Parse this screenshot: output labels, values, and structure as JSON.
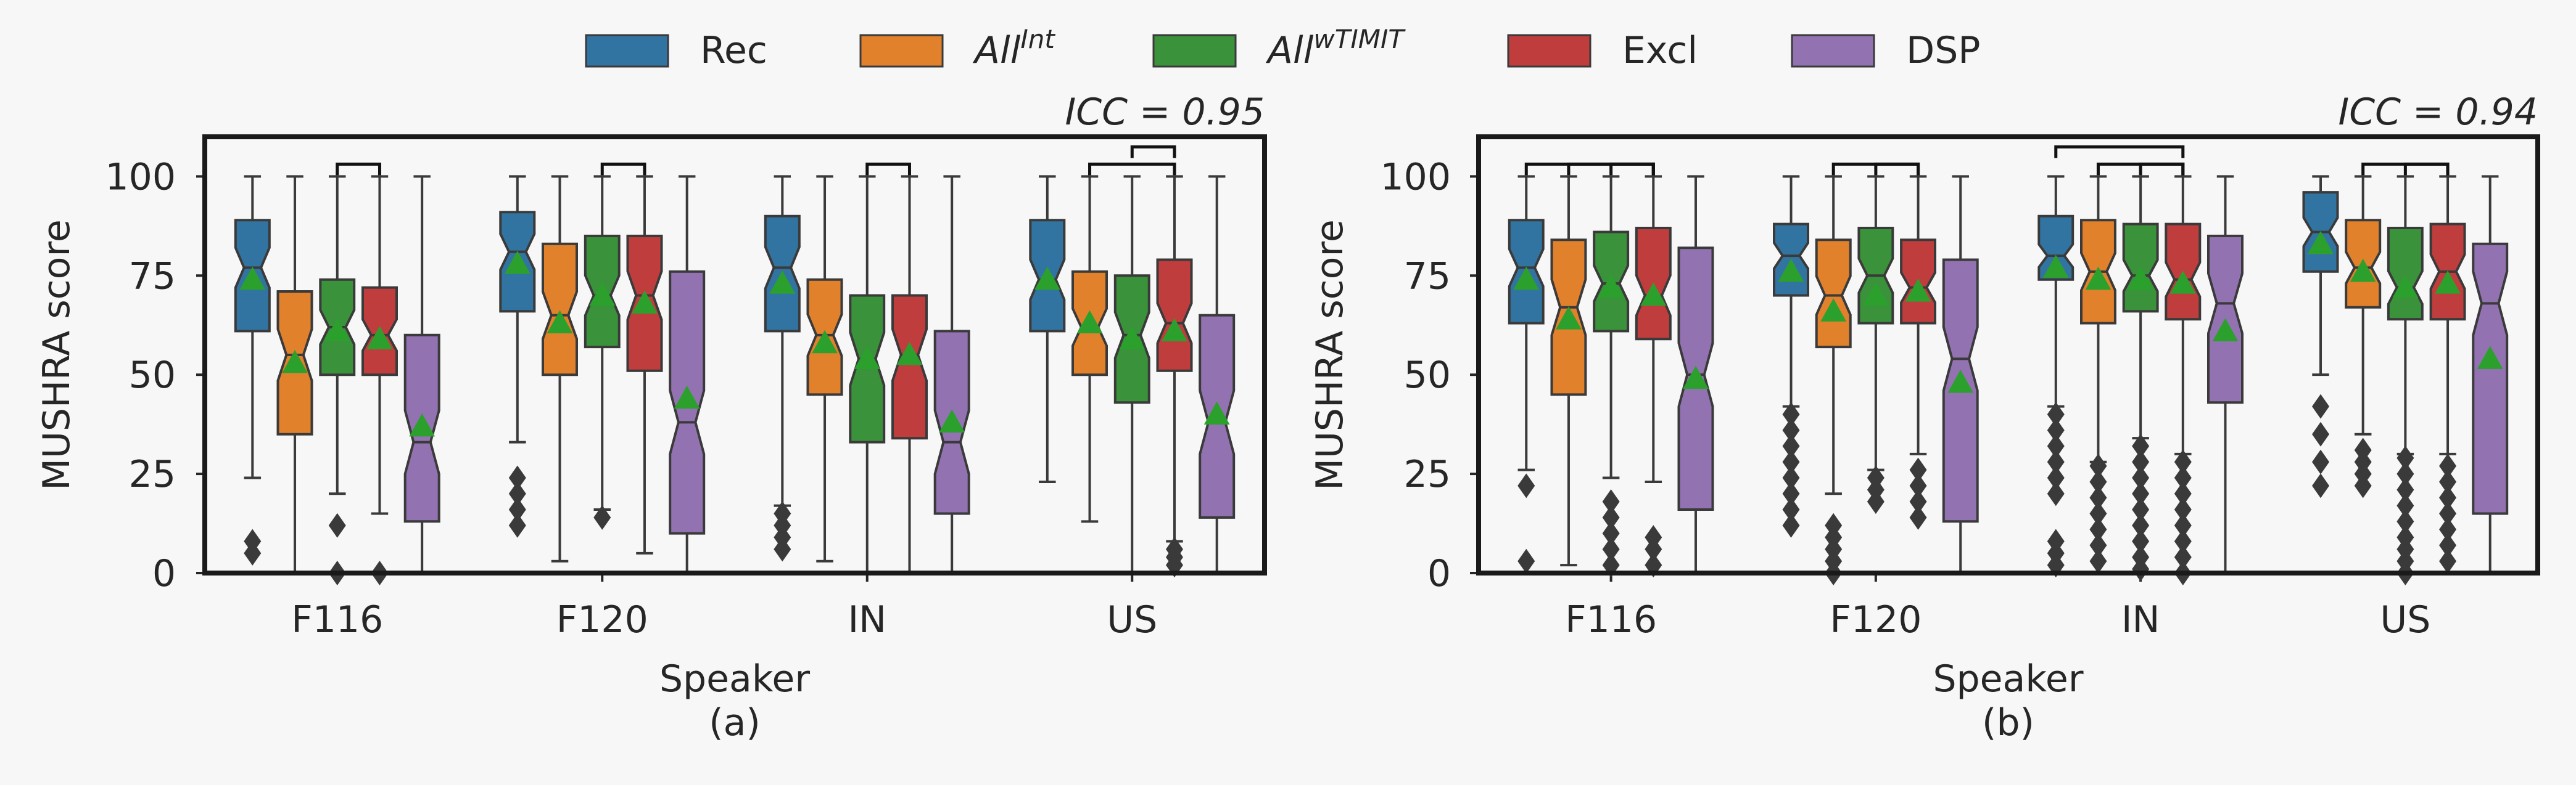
{
  "legend": [
    {
      "label": "Rec",
      "italic": false,
      "color": "#3274a1"
    },
    {
      "label": "All",
      "sup": "Int",
      "italic": true,
      "color": "#e1812c"
    },
    {
      "label": "All",
      "sup": "wTIMIT",
      "italic": true,
      "color": "#3a923a"
    },
    {
      "label": "Excl",
      "italic": false,
      "color": "#c03d3e"
    },
    {
      "label": "DSP",
      "italic": false,
      "color": "#9372b2"
    }
  ],
  "chart_data": [
    {
      "type": "boxplot",
      "caption": "(a)",
      "icc_label": "ICC = 0.95",
      "xlabel": "Speaker",
      "ylabel": "MUSHRA score",
      "ylim": [
        0,
        110
      ],
      "yticks": [
        0,
        25,
        50,
        75,
        100
      ],
      "categories": [
        "F116",
        "F120",
        "IN",
        "US"
      ],
      "series": [
        {
          "name": "Rec",
          "boxes": [
            {
              "q1": 61,
              "median": 77,
              "q3": 89,
              "whislo": 24,
              "whishi": 100,
              "mean": 74,
              "fliers": [
                5,
                8
              ]
            },
            {
              "q1": 66,
              "median": 81,
              "q3": 91,
              "whislo": 33,
              "whishi": 100,
              "mean": 78,
              "fliers": [
                12,
                16,
                20,
                24
              ]
            },
            {
              "q1": 61,
              "median": 77,
              "q3": 90,
              "whislo": 17,
              "whishi": 100,
              "mean": 73,
              "fliers": [
                6,
                9,
                12,
                15
              ]
            },
            {
              "q1": 61,
              "median": 74,
              "q3": 89,
              "whislo": 23,
              "whishi": 100,
              "mean": 74,
              "fliers": []
            }
          ]
        },
        {
          "name": "All^Int",
          "boxes": [
            {
              "q1": 35,
              "median": 55,
              "q3": 71,
              "whislo": 0,
              "whishi": 100,
              "mean": 53,
              "fliers": []
            },
            {
              "q1": 50,
              "median": 65,
              "q3": 83,
              "whislo": 3,
              "whishi": 100,
              "mean": 63,
              "fliers": []
            },
            {
              "q1": 45,
              "median": 60,
              "q3": 74,
              "whislo": 3,
              "whishi": 100,
              "mean": 58,
              "fliers": []
            },
            {
              "q1": 50,
              "median": 62,
              "q3": 76,
              "whislo": 13,
              "whishi": 100,
              "mean": 63,
              "fliers": []
            }
          ]
        },
        {
          "name": "All^wTIMIT",
          "boxes": [
            {
              "q1": 50,
              "median": 62,
              "q3": 74,
              "whislo": 20,
              "whishi": 100,
              "mean": 61,
              "fliers": [
                0,
                12
              ]
            },
            {
              "q1": 57,
              "median": 70,
              "q3": 85,
              "whislo": 16,
              "whishi": 100,
              "mean": 70,
              "fliers": [
                14
              ]
            },
            {
              "q1": 33,
              "median": 54,
              "q3": 70,
              "whislo": 0,
              "whishi": 100,
              "mean": 54,
              "fliers": []
            },
            {
              "q1": 43,
              "median": 60,
              "q3": 75,
              "whislo": 0,
              "whishi": 100,
              "mean": 59,
              "fliers": []
            }
          ]
        },
        {
          "name": "Excl",
          "boxes": [
            {
              "q1": 50,
              "median": 60,
              "q3": 72,
              "whislo": 15,
              "whishi": 100,
              "mean": 59,
              "fliers": [
                0
              ]
            },
            {
              "q1": 51,
              "median": 70,
              "q3": 85,
              "whislo": 5,
              "whishi": 100,
              "mean": 68,
              "fliers": []
            },
            {
              "q1": 34,
              "median": 55,
              "q3": 70,
              "whislo": 0,
              "whishi": 100,
              "mean": 55,
              "fliers": []
            },
            {
              "q1": 51,
              "median": 63,
              "q3": 79,
              "whislo": 8,
              "whishi": 100,
              "mean": 61,
              "fliers": [
                2,
                4,
                6
              ]
            }
          ]
        },
        {
          "name": "DSP",
          "boxes": [
            {
              "q1": 13,
              "median": 33,
              "q3": 60,
              "whislo": 0,
              "whishi": 100,
              "mean": 37,
              "fliers": []
            },
            {
              "q1": 10,
              "median": 38,
              "q3": 76,
              "whislo": 0,
              "whishi": 100,
              "mean": 44,
              "fliers": []
            },
            {
              "q1": 15,
              "median": 33,
              "q3": 61,
              "whislo": 0,
              "whishi": 100,
              "mean": 38,
              "fliers": []
            },
            {
              "q1": 14,
              "median": 38,
              "q3": 65,
              "whislo": 0,
              "whishi": 100,
              "mean": 40,
              "fliers": []
            }
          ]
        }
      ],
      "brackets": [
        {
          "cat": 0,
          "from": 2,
          "to": 3,
          "level": 0
        },
        {
          "cat": 1,
          "from": 2,
          "to": 3,
          "level": 0
        },
        {
          "cat": 2,
          "from": 2,
          "to": 3,
          "level": 0
        },
        {
          "cat": 3,
          "from": 1,
          "to": 3,
          "level": 0
        },
        {
          "cat": 3,
          "from": 2,
          "to": 3,
          "level": 1
        }
      ]
    },
    {
      "type": "boxplot",
      "caption": "(b)",
      "icc_label": "ICC = 0.94",
      "xlabel": "Speaker",
      "ylabel": "MUSHRA score",
      "ylim": [
        0,
        110
      ],
      "yticks": [
        0,
        25,
        50,
        75,
        100
      ],
      "categories": [
        "F116",
        "F120",
        "IN",
        "US"
      ],
      "series": [
        {
          "name": "Rec",
          "boxes": [
            {
              "q1": 63,
              "median": 77,
              "q3": 89,
              "whislo": 26,
              "whishi": 100,
              "mean": 74,
              "fliers": [
                3,
                22
              ]
            },
            {
              "q1": 70,
              "median": 80,
              "q3": 88,
              "whislo": 42,
              "whishi": 100,
              "mean": 76,
              "fliers": [
                12,
                16,
                20,
                24,
                28,
                32,
                36,
                40
              ]
            },
            {
              "q1": 74,
              "median": 80,
              "q3": 90,
              "whislo": 42,
              "whishi": 100,
              "mean": 77,
              "fliers": [
                2,
                5,
                8,
                20,
                24,
                28,
                32,
                36,
                40
              ]
            },
            {
              "q1": 76,
              "median": 86,
              "q3": 96,
              "whislo": 50,
              "whishi": 100,
              "mean": 83,
              "fliers": [
                22,
                28,
                35,
                42
              ]
            }
          ]
        },
        {
          "name": "All^Int",
          "boxes": [
            {
              "q1": 45,
              "median": 67,
              "q3": 84,
              "whislo": 2,
              "whishi": 100,
              "mean": 64,
              "fliers": []
            },
            {
              "q1": 57,
              "median": 70,
              "q3": 84,
              "whislo": 20,
              "whishi": 100,
              "mean": 66,
              "fliers": [
                0,
                3,
                6,
                9,
                12
              ]
            },
            {
              "q1": 63,
              "median": 76,
              "q3": 89,
              "whislo": 28,
              "whishi": 100,
              "mean": 74,
              "fliers": [
                3,
                7,
                11,
                15,
                19,
                23,
                27
              ]
            },
            {
              "q1": 67,
              "median": 77,
              "q3": 89,
              "whislo": 35,
              "whishi": 100,
              "mean": 76,
              "fliers": [
                22,
                25,
                28,
                31
              ]
            }
          ]
        },
        {
          "name": "All^wTIMIT",
          "boxes": [
            {
              "q1": 61,
              "median": 73,
              "q3": 86,
              "whislo": 24,
              "whishi": 100,
              "mean": 72,
              "fliers": [
                2,
                6,
                10,
                14,
                18
              ]
            },
            {
              "q1": 63,
              "median": 75,
              "q3": 87,
              "whislo": 26,
              "whishi": 100,
              "mean": 70,
              "fliers": [
                18,
                21,
                24
              ]
            },
            {
              "q1": 66,
              "median": 75,
              "q3": 88,
              "whislo": 34,
              "whishi": 100,
              "mean": 74,
              "fliers": [
                1,
                4,
                8,
                12,
                16,
                20,
                24,
                28,
                32
              ]
            },
            {
              "q1": 64,
              "median": 72,
              "q3": 87,
              "whislo": 30,
              "whishi": 100,
              "mean": 72,
              "fliers": [
                0,
                3,
                6,
                9,
                13,
                17,
                21,
                25,
                29
              ]
            }
          ]
        },
        {
          "name": "Excl",
          "boxes": [
            {
              "q1": 59,
              "median": 70,
              "q3": 87,
              "whislo": 23,
              "whishi": 100,
              "mean": 70,
              "fliers": [
                2,
                6,
                9
              ]
            },
            {
              "q1": 63,
              "median": 72,
              "q3": 84,
              "whislo": 30,
              "whishi": 100,
              "mean": 71,
              "fliers": [
                14,
                18,
                22,
                26
              ]
            },
            {
              "q1": 64,
              "median": 74,
              "q3": 88,
              "whislo": 30,
              "whishi": 100,
              "mean": 73,
              "fliers": [
                0,
                4,
                8,
                12,
                16,
                20,
                24,
                28
              ]
            },
            {
              "q1": 64,
              "median": 76,
              "q3": 88,
              "whislo": 30,
              "whishi": 100,
              "mean": 73,
              "fliers": [
                3,
                7,
                11,
                15,
                19,
                23,
                27
              ]
            }
          ]
        },
        {
          "name": "DSP",
          "boxes": [
            {
              "q1": 16,
              "median": 50,
              "q3": 82,
              "whislo": 0,
              "whishi": 100,
              "mean": 49,
              "fliers": []
            },
            {
              "q1": 13,
              "median": 54,
              "q3": 79,
              "whislo": 0,
              "whishi": 100,
              "mean": 48,
              "fliers": []
            },
            {
              "q1": 43,
              "median": 68,
              "q3": 85,
              "whislo": 0,
              "whishi": 100,
              "mean": 61,
              "fliers": []
            },
            {
              "q1": 15,
              "median": 68,
              "q3": 83,
              "whislo": 0,
              "whishi": 100,
              "mean": 54,
              "fliers": []
            }
          ]
        }
      ],
      "brackets": [
        {
          "cat": 0,
          "from": 0,
          "to": 3,
          "level": 0
        },
        {
          "cat": 0,
          "from": 1,
          "to": 3,
          "level": 0
        },
        {
          "cat": 0,
          "from": 2,
          "to": 3,
          "level": 0
        },
        {
          "cat": 1,
          "from": 1,
          "to": 3,
          "level": 0
        },
        {
          "cat": 1,
          "from": 2,
          "to": 3,
          "level": 0
        },
        {
          "cat": 2,
          "from": 0,
          "to": 3,
          "level": 1
        },
        {
          "cat": 2,
          "from": 1,
          "to": 3,
          "level": 0
        },
        {
          "cat": 2,
          "from": 2,
          "to": 3,
          "level": 0
        },
        {
          "cat": 3,
          "from": 1,
          "to": 3,
          "level": 0
        },
        {
          "cat": 3,
          "from": 2,
          "to": 3,
          "level": 0
        }
      ]
    }
  ]
}
